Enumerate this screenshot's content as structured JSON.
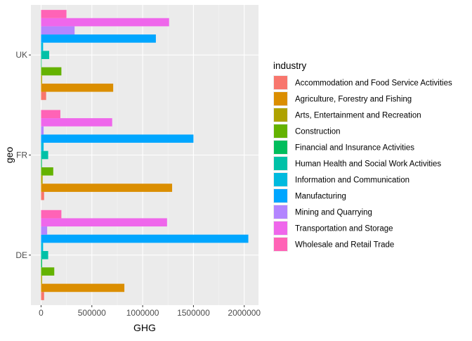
{
  "chart_data": {
    "type": "bar",
    "orientation": "horizontal",
    "categories": [
      "DE",
      "FR",
      "UK"
    ],
    "xlabel": "GHG",
    "ylabel": "geo",
    "xlim": [
      -100000,
      2140000
    ],
    "xticks": [
      {
        "value": 0,
        "label": "0"
      },
      {
        "value": 500000,
        "label": "500000"
      },
      {
        "value": 1000000,
        "label": "1000000"
      },
      {
        "value": 1500000,
        "label": "1500000"
      },
      {
        "value": 2000000,
        "label": "2000000"
      }
    ],
    "legend": {
      "title": "industry",
      "position": "right"
    },
    "grid": true,
    "series": [
      {
        "name": "Accommodation and Food Service Activities",
        "color": "#F8766D",
        "values": [
          30000,
          30000,
          50000
        ]
      },
      {
        "name": "Agriculture, Forestry and Fishing",
        "color": "#DB8E00",
        "values": [
          820000,
          1290000,
          710000
        ]
      },
      {
        "name": "Arts, Entertainment and Recreation",
        "color": "#AEA200",
        "values": [
          10000,
          15000,
          10000
        ]
      },
      {
        "name": "Construction",
        "color": "#64B200",
        "values": [
          130000,
          120000,
          200000
        ]
      },
      {
        "name": "Financial and Insurance Activities",
        "color": "#00BD5C",
        "values": [
          10000,
          8000,
          5000
        ]
      },
      {
        "name": "Human Health and Social Work Activities",
        "color": "#00C1A7",
        "values": [
          70000,
          70000,
          80000
        ]
      },
      {
        "name": "Information and Communication",
        "color": "#00BADE",
        "values": [
          20000,
          25000,
          20000
        ]
      },
      {
        "name": "Manufacturing",
        "color": "#00A6FF",
        "values": [
          2040000,
          1500000,
          1130000
        ]
      },
      {
        "name": "Mining and Quarrying",
        "color": "#B385FF",
        "values": [
          60000,
          25000,
          330000
        ]
      },
      {
        "name": "Transportation and Storage",
        "color": "#EF67EB",
        "values": [
          1240000,
          700000,
          1260000
        ]
      },
      {
        "name": "Wholesale and Retail Trade",
        "color": "#FF63B6",
        "values": [
          200000,
          190000,
          250000
        ]
      }
    ]
  },
  "colors": {
    "panel_background": "#EBEBEB",
    "gridline_major": "#FFFFFF",
    "gridline_minor": "#F5F5F5",
    "tick_text": "#4D4D4D",
    "tick_mark": "#333333"
  }
}
